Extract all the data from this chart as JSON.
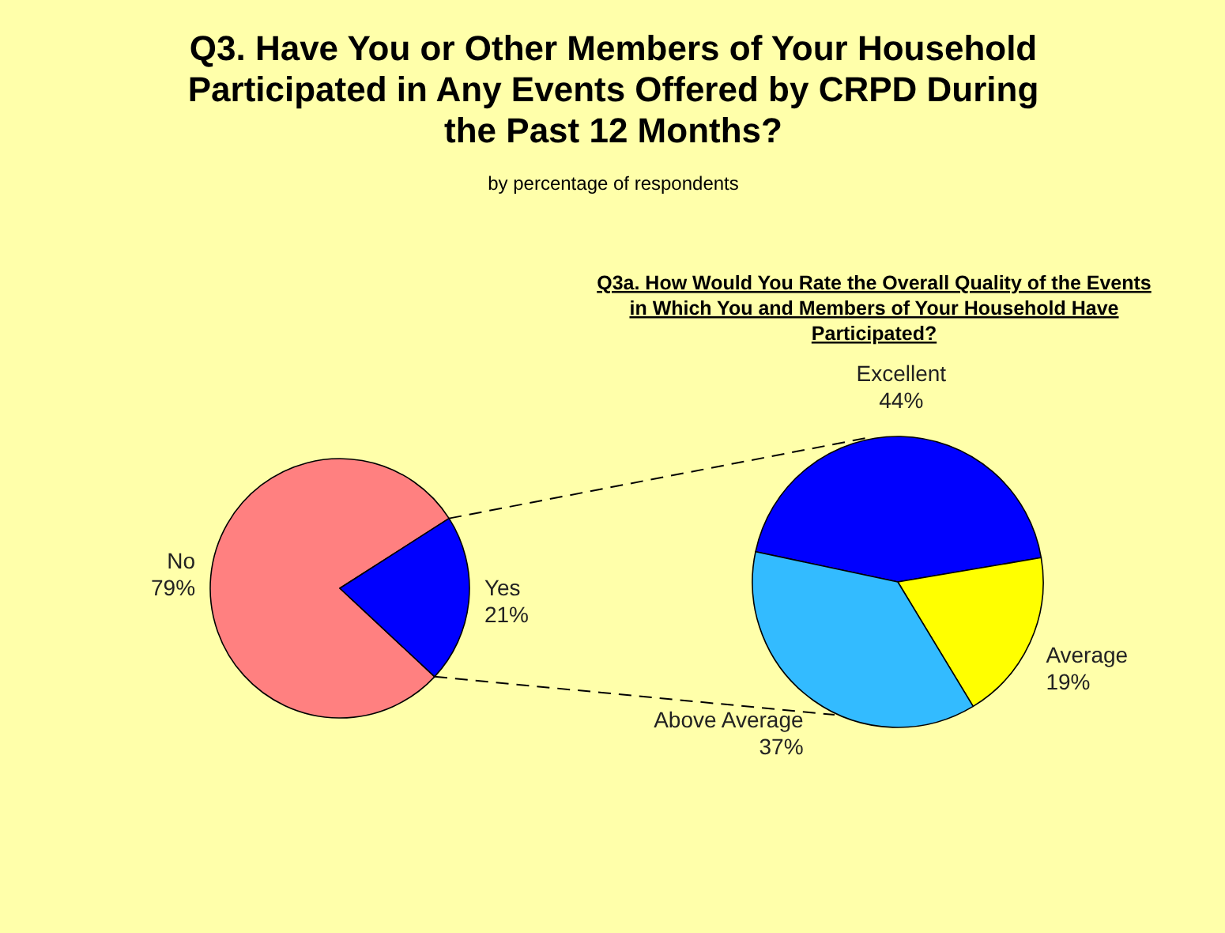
{
  "chart_data": [
    {
      "type": "pie",
      "title": "Q3. Have You or Other Members of Your Household Participated in Any Events Offered by CRPD During the Past 12 Months?",
      "subtitle": "by percentage of respondents",
      "categories": [
        "No",
        "Yes"
      ],
      "values": [
        79,
        21
      ],
      "colors": [
        "#ff8080",
        "#0000ff"
      ],
      "value_labels": [
        "79%",
        "21%"
      ]
    },
    {
      "type": "pie",
      "title": "Q3a. How Would You Rate the Overall Quality of the Events in Which You and Members of Your Household Have Participated?",
      "categories": [
        "Excellent",
        "Average",
        "Above Average"
      ],
      "values": [
        44,
        19,
        37
      ],
      "colors": [
        "#0000ff",
        "#ffff00",
        "#33bbff"
      ],
      "value_labels": [
        "44%",
        "19%",
        "37%"
      ]
    }
  ]
}
